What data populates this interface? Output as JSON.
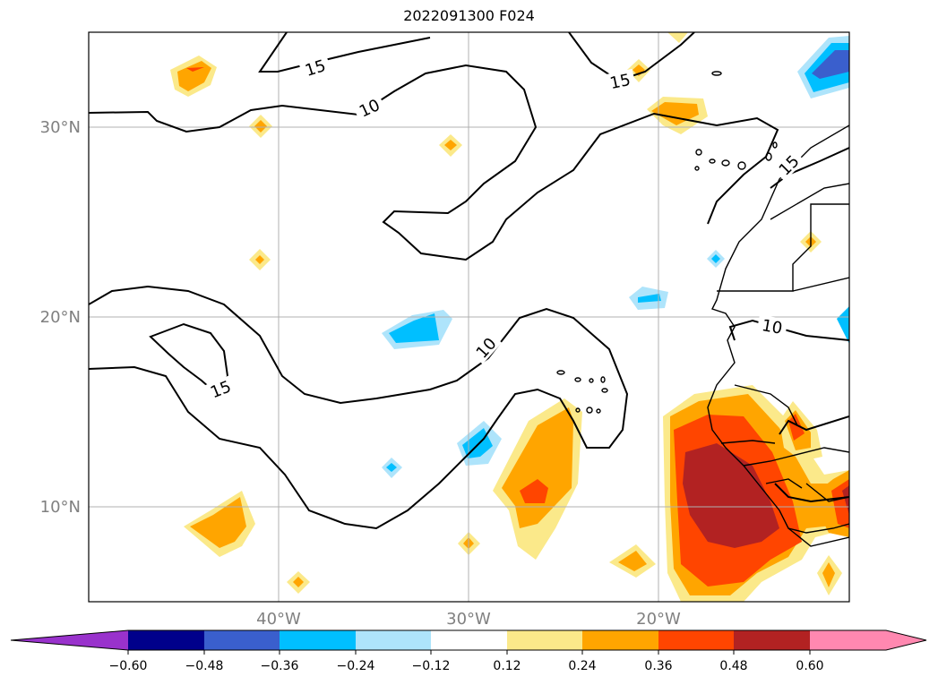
{
  "title": "2022091300 F024",
  "map": {
    "lat_labels": [
      "30°N",
      "20°N",
      "10°N"
    ],
    "lon_labels": [
      "40°W",
      "30°W",
      "20°W"
    ],
    "contour_labels": [
      "15",
      "10",
      "15",
      "15",
      "10",
      "10",
      "15"
    ]
  },
  "colorbar": {
    "ticks": [
      "−0.60",
      "−0.48",
      "−0.36",
      "−0.24",
      "−0.12",
      "0.12",
      "0.24",
      "0.36",
      "0.48",
      "0.60"
    ],
    "colors": [
      "#9932cc",
      "#00008b",
      "#3a5fcd",
      "#00bfff",
      "#aee4fb",
      "#ffffff",
      "#fbe98a",
      "#ffa500",
      "#ff4500",
      "#b22222",
      "#ff88b0"
    ]
  },
  "colors": {
    "grid": "#b0b0b0",
    "contour": "#000000",
    "axis_label": "#808080"
  }
}
